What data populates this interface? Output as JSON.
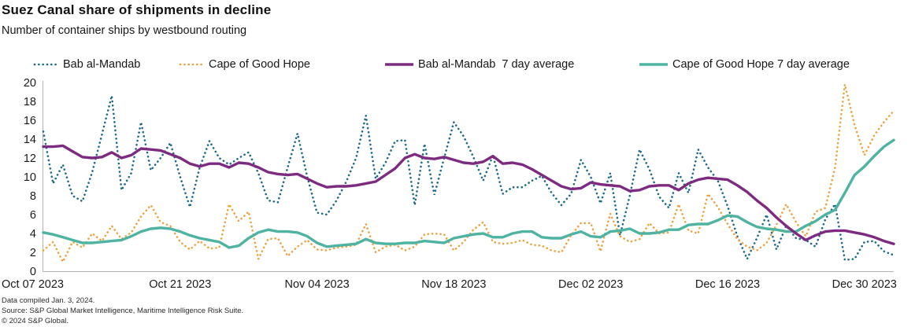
{
  "header": {
    "title": "Suez Canal share of shipments in decline",
    "subtitle": "Number of container ships by westbound routing"
  },
  "legend": {
    "items": [
      {
        "label": "Bab al-Mandab",
        "style": "dotted"
      },
      {
        "label": "Cape of Good Hope",
        "style": "dotted"
      },
      {
        "label": "Bab al-Mandab  7 day average",
        "style": "solid"
      },
      {
        "label": "Cape of Good Hope 7 day average",
        "style": "solid"
      }
    ]
  },
  "chart_data": {
    "type": "line",
    "title": "Suez Canal share of shipments in decline",
    "subtitle": "Number of container ships by westbound routing",
    "xlabel": "",
    "ylabel": "",
    "ylim": [
      0,
      20
    ],
    "y_ticks": [
      0,
      2,
      4,
      6,
      8,
      10,
      12,
      14,
      16,
      18,
      20
    ],
    "x_tick_labels": [
      "Oct 07 2023",
      "Oct 21 2023",
      "Nov 04 2023",
      "Nov 18 2023",
      "Dec 02 2023",
      "Dec 16 2023",
      "Dec 30 2023"
    ],
    "x_tick_days": [
      0,
      14,
      28,
      42,
      56,
      70,
      84
    ],
    "n_points": 88,
    "points_per_day": 1,
    "grid": false,
    "legend_position": "top",
    "axis_color": "#b3b3b3",
    "text_color": "#1a1a1a",
    "series": [
      {
        "name": "Bab al-Mandab",
        "line_style": "dotted",
        "color": "#1c6a87",
        "values": [
          14.8,
          9.3,
          11.3,
          8.0,
          7.4,
          10.5,
          14.5,
          18.6,
          8.6,
          10.4,
          15.8,
          10.7,
          12.0,
          13.6,
          10.0,
          6.8,
          11.0,
          13.8,
          12.0,
          11.3,
          12.0,
          12.6,
          10.4,
          7.5,
          7.3,
          11.0,
          14.6,
          10.0,
          6.2,
          6.0,
          7.5,
          9.5,
          12.0,
          16.5,
          9.8,
          11.5,
          13.8,
          13.9,
          7.0,
          13.5,
          8.1,
          12.0,
          15.8,
          14.3,
          12.1,
          9.6,
          12.3,
          8.2,
          8.9,
          8.9,
          9.6,
          10.1,
          8.3,
          7.0,
          8.2,
          11.8,
          10.0,
          7.2,
          10.4,
          3.8,
          8.0,
          12.9,
          10.8,
          7.9,
          6.7,
          10.4,
          8.3,
          12.9,
          11.0,
          9.6,
          6.9,
          3.7,
          1.3,
          3.5,
          6.0,
          2.3,
          4.8,
          3.5,
          3.3,
          2.6,
          5.5,
          7.1,
          1.2,
          1.3,
          3.1,
          3.2,
          2.1,
          1.7
        ]
      },
      {
        "name": "Cape of Good Hope",
        "line_style": "dotted",
        "color": "#eba23f",
        "values": [
          2.2,
          3.1,
          1.0,
          3.1,
          2.5,
          4.0,
          3.2,
          4.8,
          3.4,
          4.1,
          5.8,
          7.0,
          5.2,
          4.8,
          3.1,
          2.3,
          3.2,
          2.4,
          2.5,
          7.1,
          5.3,
          6.3,
          1.3,
          3.4,
          3.5,
          1.6,
          2.6,
          3.3,
          2.3,
          2.2,
          2.5,
          2.6,
          2.8,
          5.0,
          2.0,
          2.6,
          2.8,
          2.2,
          2.6,
          3.9,
          4.0,
          3.9,
          2.2,
          3.1,
          4.4,
          5.2,
          3.1,
          2.9,
          3.0,
          3.3,
          2.8,
          2.7,
          2.2,
          2.0,
          3.8,
          5.1,
          5.1,
          2.1,
          6.1,
          3.7,
          3.1,
          3.4,
          5.1,
          4.0,
          4.1,
          7.1,
          4.3,
          4.0,
          8.2,
          6.8,
          5.0,
          3.4,
          2.6,
          2.2,
          3.0,
          4.9,
          7.1,
          5.2,
          3.7,
          6.3,
          6.7,
          11.0,
          19.8,
          15.5,
          12.3,
          14.4,
          15.8,
          17.0
        ]
      },
      {
        "name": "Bab al-Mandab 7 day average",
        "line_style": "solid",
        "color": "#7d2b80",
        "values": [
          13.2,
          13.2,
          13.3,
          12.7,
          12.1,
          12.0,
          12.1,
          12.6,
          12.0,
          12.3,
          13.0,
          12.9,
          12.8,
          12.4,
          12.0,
          11.4,
          11.1,
          11.4,
          11.4,
          11.0,
          11.5,
          11.4,
          11.0,
          10.5,
          10.3,
          10.2,
          10.3,
          9.8,
          9.3,
          8.9,
          9.0,
          9.0,
          9.1,
          9.3,
          9.5,
          10.2,
          10.9,
          12.0,
          12.4,
          12.0,
          11.9,
          12.1,
          11.8,
          11.5,
          11.4,
          11.6,
          12.2,
          11.4,
          11.5,
          11.3,
          10.8,
          10.2,
          9.6,
          9.0,
          8.7,
          8.8,
          9.4,
          9.2,
          9.1,
          9.0,
          8.5,
          8.6,
          9.0,
          9.1,
          9.1,
          8.6,
          9.3,
          9.7,
          9.9,
          9.8,
          9.7,
          9.1,
          8.4,
          7.5,
          6.7,
          5.7,
          4.8,
          4.0,
          3.3,
          3.8,
          4.2,
          4.3,
          4.3,
          4.1,
          3.9,
          3.6,
          3.2,
          2.9
        ]
      },
      {
        "name": "Cape of Good Hope 7 day average",
        "line_style": "solid",
        "color": "#4eb3a0",
        "values": [
          4.1,
          3.9,
          3.6,
          3.3,
          3.0,
          3.0,
          3.1,
          3.2,
          3.3,
          3.7,
          4.2,
          4.5,
          4.6,
          4.5,
          4.2,
          3.8,
          3.5,
          3.3,
          3.1,
          2.5,
          2.7,
          3.5,
          4.1,
          4.4,
          4.2,
          4.2,
          4.1,
          3.7,
          3.0,
          2.6,
          2.7,
          2.8,
          2.9,
          3.4,
          3.0,
          2.9,
          2.9,
          3.0,
          3.0,
          3.2,
          3.1,
          3.0,
          3.5,
          3.7,
          3.9,
          4.0,
          3.6,
          3.6,
          4.0,
          4.2,
          4.2,
          3.6,
          3.5,
          3.5,
          3.9,
          4.2,
          3.7,
          3.6,
          4.2,
          4.3,
          4.5,
          4.0,
          4.0,
          4.1,
          4.4,
          4.4,
          4.9,
          5.0,
          5.0,
          5.4,
          5.9,
          5.8,
          5.2,
          4.7,
          4.5,
          4.4,
          4.2,
          4.2,
          4.8,
          5.3,
          6.0,
          6.5,
          8.3,
          10.2,
          11.1,
          12.2,
          13.2,
          13.9
        ]
      }
    ]
  },
  "footnotes": {
    "line1": "Data compiled Jan. 3, 2024.",
    "line2": "Source: S&P Global Market Intelligence, Maritime Intelligence Risk Suite.",
    "line3": "© 2024 S&P Global."
  }
}
